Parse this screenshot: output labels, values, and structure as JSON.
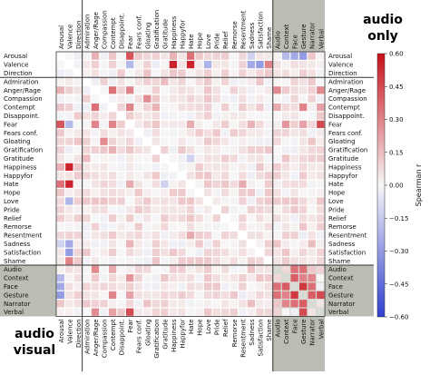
{
  "chart_data": {
    "type": "heatmap",
    "title": "",
    "colorbar": {
      "label": "Spearman r",
      "min": -0.6,
      "max": 0.6,
      "ticks": [
        "0.60",
        "0.45",
        "0.30",
        "0.15",
        "0.00",
        "−0.15",
        "−0.30",
        "−0.45",
        "−0.60"
      ]
    },
    "corner_labels": {
      "top_right": [
        "audio",
        "only"
      ],
      "bottom_left": [
        "audio",
        "visual"
      ]
    },
    "labels": [
      "Arousal",
      "Valence",
      "Direction",
      "Admiration",
      "Anger/Rage",
      "Compassion",
      "Contempt",
      "Disappoint.",
      "Fear",
      "Fears conf.",
      "Gloating",
      "Gratification",
      "Gratitude",
      "Happiness",
      "Happyfor",
      "Hate",
      "Hope",
      "Love",
      "Pride",
      "Relief",
      "Remorse",
      "Resentment",
      "Sadness",
      "Satisfaction",
      "Shame",
      "Audio",
      "Context",
      "Face",
      "Gesture",
      "Narrator",
      "Verbal"
    ],
    "group_separators_after": [
      2,
      24
    ],
    "mirrored_by_diagonal": true,
    "diagonal_value": null,
    "highlighted_cells": [
      {
        "row": "Anger/Rage",
        "col": "Arousal",
        "value": 0.32
      },
      {
        "row": "Fear",
        "col": "Arousal",
        "value": 0.42
      },
      {
        "row": "Happiness",
        "col": "Valence",
        "value": 0.55
      },
      {
        "row": "Hate",
        "col": "Arousal",
        "value": 0.35
      },
      {
        "row": "Love",
        "col": "Valence",
        "value": -0.22
      },
      {
        "row": "Sadness",
        "col": "Valence",
        "value": -0.25
      },
      {
        "row": "Sadness",
        "col": "Arousal",
        "value": -0.12
      },
      {
        "row": "Happiness",
        "col": "Arousal",
        "value": 0.18
      },
      {
        "row": "Contempt",
        "col": "Anger/Rage",
        "value": 0.35
      },
      {
        "row": "Fear",
        "col": "Anger/Rage",
        "value": 0.3
      },
      {
        "row": "Fear",
        "col": "Contempt",
        "value": 0.3
      },
      {
        "row": "Gloating",
        "col": "Compassion",
        "value": 0.28
      },
      {
        "row": "Fear",
        "col": "Verbal",
        "value": 0.45
      },
      {
        "row": "Fear",
        "col": "Gesture",
        "value": 0.22
      },
      {
        "row": "Admiration",
        "col": "Gratitude",
        "value": 0.15
      },
      {
        "row": "Valence",
        "col": "Hate",
        "value": 0.55
      },
      {
        "row": "Valence",
        "col": "Fear",
        "value": -0.2
      },
      {
        "row": "Valence",
        "col": "Satisfaction",
        "value": -0.3
      },
      {
        "row": "Valence",
        "col": "Shame",
        "value": 0.3
      },
      {
        "row": "Arousal",
        "col": "Anger/Rage",
        "value": 0.18
      },
      {
        "row": "Verbal",
        "col": "Gesture",
        "value": 0.45
      },
      {
        "row": "Face",
        "col": "Context",
        "value": 0.4
      },
      {
        "row": "Face",
        "col": "Audio",
        "value": 0.35
      },
      {
        "row": "Gesture",
        "col": "Face",
        "value": 0.5
      },
      {
        "row": "Narrator",
        "col": "Gesture",
        "value": 0.4
      },
      {
        "row": "Narrator",
        "col": "Face",
        "value": 0.35
      },
      {
        "row": "Narrator",
        "col": "Context",
        "value": 0.3
      },
      {
        "row": "Gesture",
        "col": "Context",
        "value": 0.3
      },
      {
        "row": "Gesture",
        "col": "Audio",
        "value": 0.35
      },
      {
        "row": "Face",
        "col": "Arousal",
        "value": -0.25
      },
      {
        "row": "Context",
        "col": "Arousal",
        "value": -0.2
      },
      {
        "row": "Gesture",
        "col": "Arousal",
        "value": -0.3
      },
      {
        "row": "Gesture",
        "col": "Contempt",
        "value": 0.3
      },
      {
        "row": "Audio",
        "col": "Anger/Rage",
        "value": 0.28
      },
      {
        "row": "Verbal",
        "col": "Anger/Rage",
        "value": 0.28
      },
      {
        "row": "Verbal",
        "col": "Contempt",
        "value": 0.22
      },
      {
        "row": "Context",
        "col": "Fear",
        "value": 0.25
      },
      {
        "row": "Audio",
        "col": "Contempt",
        "value": 0.2
      },
      {
        "row": "Gratification",
        "col": "Contempt",
        "value": 0.18
      },
      {
        "row": "Hate",
        "col": "Fear",
        "value": 0.2
      },
      {
        "row": "Sadness",
        "col": "Fear",
        "value": 0.18
      },
      {
        "row": "Resentment",
        "col": "Hate",
        "value": 0.2
      },
      {
        "row": "Hate",
        "col": "Gratitude",
        "value": -0.12
      },
      {
        "row": "Sadness",
        "col": "Narrator",
        "value": 0.15
      }
    ]
  },
  "colors": {
    "neg": "#2f3fcf",
    "mid": "#f7f7f7",
    "pos": "#c8101a",
    "panel": "#b9bdb3"
  }
}
